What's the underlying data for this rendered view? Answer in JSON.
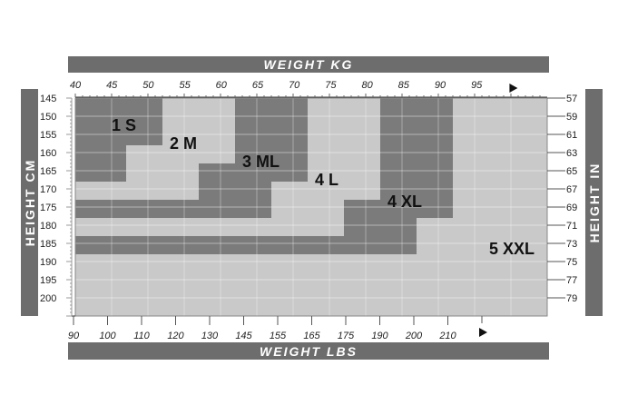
{
  "chart_data": {
    "type": "heatmap",
    "top_axis_title": "WEIGHT KG",
    "bottom_axis_title": "WEIGHT LBS",
    "left_axis_title": "HEIGHT CM",
    "right_axis_title": "HEIGHT IN",
    "kg_ticks": [
      "40",
      "45",
      "50",
      "55",
      "60",
      "65",
      "70",
      "75",
      "80",
      "85",
      "90",
      "95"
    ],
    "lbs_ticks": [
      "90",
      "100",
      "110",
      "120",
      "130",
      "145",
      "155",
      "165",
      "175",
      "190",
      "200",
      "210"
    ],
    "cm_ticks": [
      "145",
      "150",
      "155",
      "160",
      "165",
      "170",
      "175",
      "180",
      "185",
      "190",
      "195",
      "200"
    ],
    "in_ticks": [
      "57",
      "59",
      "61",
      "63",
      "65",
      "67",
      "69",
      "71",
      "73",
      "75",
      "77",
      "79"
    ],
    "xlim_kg": [
      40,
      105
    ],
    "ylim_cm": [
      145,
      205
    ],
    "grid": true,
    "colors": {
      "dark": "#7b7b7b",
      "light": "#c9c9c9",
      "banner": "#6d6d6d"
    },
    "sizes": [
      {
        "label": "5 XXL",
        "shade": "light",
        "steps": [
          [
            105,
            205
          ]
        ],
        "label_at": [
          97,
          188
        ]
      },
      {
        "label": "4 XL",
        "shade": "dark",
        "steps": [
          [
            92,
            178
          ],
          [
            87,
            188
          ]
        ],
        "label_at": [
          83,
          175
        ]
      },
      {
        "label": "4 L",
        "shade": "light",
        "steps": [
          [
            82,
            173
          ],
          [
            77,
            183
          ]
        ],
        "label_at": [
          73,
          169
        ]
      },
      {
        "label": "3 ML",
        "shade": "dark",
        "steps": [
          [
            72,
            168
          ],
          [
            67,
            178
          ]
        ],
        "label_at": [
          63,
          164
        ]
      },
      {
        "label": "2 M",
        "shade": "light",
        "steps": [
          [
            62,
            163
          ],
          [
            57,
            173
          ]
        ],
        "label_at": [
          53,
          159
        ]
      },
      {
        "label": "1 S",
        "shade": "dark",
        "steps": [
          [
            52,
            158
          ],
          [
            47,
            168
          ]
        ],
        "label_at": [
          45,
          154
        ]
      }
    ]
  }
}
